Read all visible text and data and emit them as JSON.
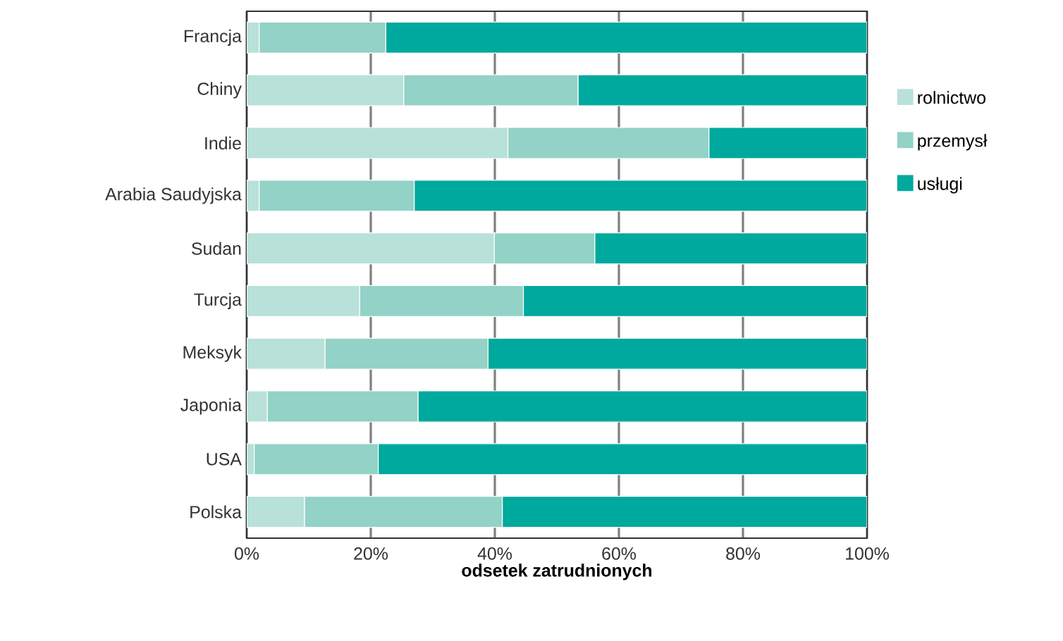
{
  "chart_data": {
    "type": "bar",
    "orientation": "horizontal",
    "stacked": true,
    "xlabel": "odsetek zatrudnionych",
    "categories": [
      "Francja",
      "Chiny",
      "Indie",
      "Arabia Saudyjska",
      "Sudan",
      "Turcja",
      "Meksyk",
      "Japonia",
      "USA",
      "Polska"
    ],
    "series": [
      {
        "name": "rolnictwo",
        "color": "#b8e1d9",
        "values": [
          2.0,
          25.3,
          42.1,
          2.0,
          39.9,
          18.2,
          12.6,
          3.3,
          1.2,
          9.3
        ]
      },
      {
        "name": "przemysł",
        "color": "#93d2c6",
        "values": [
          20.4,
          28.1,
          32.4,
          25.0,
          16.2,
          26.4,
          26.3,
          24.3,
          20.0,
          31.9
        ]
      },
      {
        "name": "usługi",
        "color": "#00a99d",
        "values": [
          77.6,
          46.6,
          25.5,
          73.0,
          43.9,
          55.4,
          61.1,
          72.4,
          78.8,
          58.8
        ]
      }
    ],
    "xlim": [
      0,
      100
    ],
    "xticks": [
      {
        "value": 0,
        "label": "0%"
      },
      {
        "value": 20,
        "label": "20%"
      },
      {
        "value": 40,
        "label": "40%"
      },
      {
        "value": 60,
        "label": "60%"
      },
      {
        "value": 80,
        "label": "80%"
      },
      {
        "value": 100,
        "label": "100%"
      }
    ],
    "grid": "x",
    "legend": "right"
  }
}
